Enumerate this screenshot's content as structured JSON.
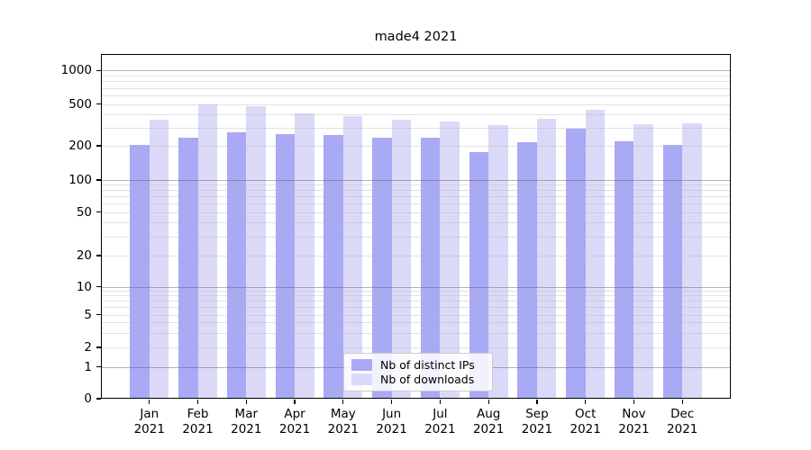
{
  "title": "made4 2021",
  "chart_data": {
    "type": "bar",
    "title": "made4 2021",
    "categories": [
      "Jan 2021",
      "Feb 2021",
      "Mar 2021",
      "Apr 2021",
      "May 2021",
      "Jun 2021",
      "Jul 2021",
      "Aug 2021",
      "Sep 2021",
      "Oct 2021",
      "Nov 2021",
      "Dec 2021"
    ],
    "series": [
      {
        "name": "Nb of distinct IPs",
        "color": "#a9a9f5",
        "values": [
          206,
          239,
          271,
          260,
          252,
          240,
          238,
          176,
          216,
          290,
          222,
          205
        ]
      },
      {
        "name": "Nb of downloads",
        "color": "#dadaf8",
        "values": [
          352,
          500,
          475,
          410,
          385,
          358,
          342,
          315,
          360,
          440,
          320,
          330
        ]
      }
    ],
    "xlabel": "",
    "ylabel": "",
    "yscale": "symlog",
    "yticks": [
      "0",
      "1",
      "2",
      "5",
      "10",
      "20",
      "50",
      "100",
      "200",
      "500",
      "1000"
    ],
    "ylim": [
      0,
      1400
    ],
    "grid": true,
    "legend_position": "lower center"
  }
}
